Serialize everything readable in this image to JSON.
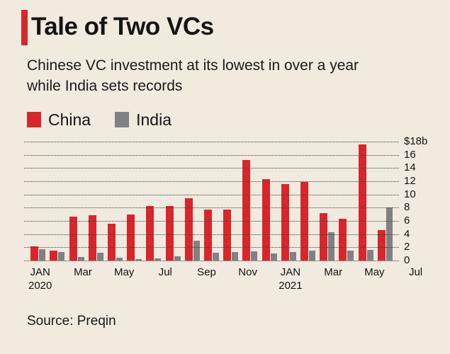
{
  "colors": {
    "background": "#f0eadf",
    "accent": "#d8262c",
    "china": "#d8262c",
    "india": "#7f8184",
    "grid": "#3c3c3c",
    "text": "#141414"
  },
  "header": {
    "title": "Tale of Two VCs",
    "subtitle_lines": [
      "Chinese VC investment at its lowest in over a year",
      "while India sets records"
    ]
  },
  "legend": {
    "items": [
      {
        "label": "China",
        "color": "#d8262c"
      },
      {
        "label": "India",
        "color": "#7f8184"
      }
    ]
  },
  "chart_data": {
    "type": "bar",
    "title": "Tale of Two VCs",
    "categories": [
      "Jan 2020",
      "Feb 2020",
      "Mar 2020",
      "Apr 2020",
      "May 2020",
      "Jun 2020",
      "Jul 2020",
      "Aug 2020",
      "Sep 2020",
      "Oct 2020",
      "Nov 2020",
      "Dec 2020",
      "Jan 2021",
      "Feb 2021",
      "Mar 2021",
      "Apr 2021",
      "May 2021",
      "Jun 2021",
      "Jul 2021"
    ],
    "series": [
      {
        "name": "China",
        "color": "#d8262c",
        "values": [
          2.1,
          1.5,
          6.6,
          6.9,
          5.6,
          7.0,
          8.3,
          8.2,
          9.4,
          7.7,
          7.7,
          15.2,
          12.3,
          11.6,
          11.9,
          7.2,
          6.3,
          17.6,
          4.6
        ]
      },
      {
        "name": "India",
        "color": "#7f8184",
        "values": [
          1.7,
          1.3,
          0.5,
          1.2,
          0.4,
          0.2,
          0.3,
          0.6,
          3.0,
          1.2,
          1.3,
          1.4,
          1.1,
          1.3,
          1.5,
          4.3,
          1.5,
          1.6,
          8.0
        ]
      }
    ],
    "ylim": [
      0,
      18
    ],
    "y_ticks": [
      {
        "value": 18,
        "label": "$18b"
      },
      {
        "value": 16,
        "label": "16"
      },
      {
        "value": 14,
        "label": "14"
      },
      {
        "value": 12,
        "label": "12"
      },
      {
        "value": 10,
        "label": "10"
      },
      {
        "value": 8,
        "label": "8"
      },
      {
        "value": 6,
        "label": "6"
      },
      {
        "value": 4,
        "label": "4"
      },
      {
        "value": 2,
        "label": "2"
      },
      {
        "value": 0,
        "label": "0"
      }
    ],
    "x_ticks": [
      {
        "index": 0,
        "line1": "JAN",
        "line2": "2020"
      },
      {
        "index": 2,
        "line1": "Mar"
      },
      {
        "index": 4,
        "line1": "May"
      },
      {
        "index": 6,
        "line1": "Jul"
      },
      {
        "index": 8,
        "line1": "Sep"
      },
      {
        "index": 10,
        "line1": "Nov"
      },
      {
        "index": 12,
        "line1": "JAN",
        "line2": "2021"
      },
      {
        "index": 14,
        "line1": "Mar"
      },
      {
        "index": 16,
        "line1": "May"
      },
      {
        "index": 18,
        "line1": "Jul"
      }
    ],
    "grid": "dotted-horizontal",
    "legend_position": "top-left",
    "y_axis_side": "right"
  },
  "source": {
    "text": "Source: Preqin"
  }
}
